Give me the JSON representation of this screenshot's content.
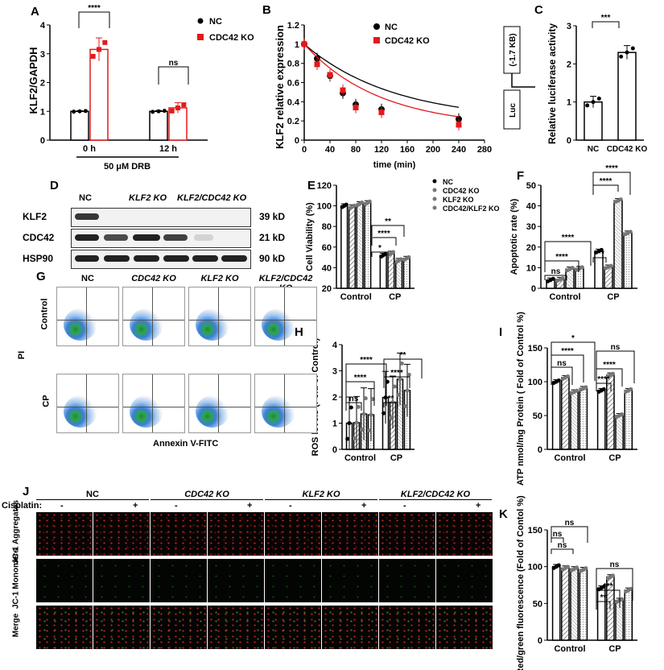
{
  "panels": {
    "A": "A",
    "B": "B",
    "C": "C",
    "D": "D",
    "E": "E",
    "F": "F",
    "G": "G",
    "H": "H",
    "I": "I",
    "J": "J",
    "K": "K"
  },
  "colors": {
    "nc": "#000000",
    "ko": "#e31a1c",
    "black": "#000000"
  },
  "panel_d": {
    "headers": [
      "NC",
      "KLF2 KO",
      "KLF2/CDC42 KO"
    ],
    "rows": [
      {
        "label": "KLF2",
        "size": "39 kD"
      },
      {
        "label": "CDC42",
        "size": "21 kD"
      },
      {
        "label": "HSP90",
        "size": "90 kD"
      }
    ]
  },
  "panel_g": {
    "columns": [
      "NC",
      "CDC42 KO",
      "KLF2 KO",
      "KLF2/CDC42 KO"
    ],
    "rows": [
      "Control",
      "CP"
    ],
    "xlabel": "Annexin V-FITC",
    "ylabel": "PI"
  },
  "panel_j": {
    "cisplatin_label": "Cisplatin:",
    "groups": [
      "NC",
      "CDC42 KO",
      "KLF2 KO",
      "KLF2/CDC42 KO"
    ],
    "signs": [
      "-",
      "+"
    ],
    "rows": [
      "JC-1 Aggregates",
      "JC-1 Monomers",
      "Merge"
    ]
  },
  "chart_data": [
    {
      "id": "A",
      "type": "bar",
      "categories": [
        "0 h",
        "12 h"
      ],
      "ylabel": "KLF2/GAPDH",
      "ylim": [
        0,
        4
      ],
      "yticks": [
        0,
        1,
        2,
        3,
        4
      ],
      "xnote": "50 μM DRB",
      "series": [
        {
          "name": "NC",
          "values": [
            1.0,
            1.0
          ],
          "err": [
            0.02,
            0.03
          ]
        },
        {
          "name": "CDC42 KO",
          "values": [
            3.15,
            1.12
          ],
          "err": [
            0.4,
            0.18
          ]
        }
      ],
      "annotations": [
        "****",
        "ns"
      ]
    },
    {
      "id": "B",
      "type": "line",
      "xlabel": "time (min)",
      "ylabel": "KLF2 relative expression",
      "xlim": [
        0,
        280
      ],
      "ylim": [
        0,
        1.2
      ],
      "xticks": [
        0,
        40,
        80,
        120,
        160,
        200,
        240,
        280
      ],
      "yticks": [
        0,
        0.2,
        0.4,
        0.6,
        0.8,
        1.0,
        1.2
      ],
      "x": [
        0,
        20,
        40,
        60,
        80,
        120,
        240
      ],
      "series": [
        {
          "name": "NC",
          "values": [
            1.0,
            0.85,
            0.67,
            0.49,
            0.37,
            0.32,
            0.22
          ]
        },
        {
          "name": "CDC42 KO",
          "values": [
            1.0,
            0.79,
            0.68,
            0.52,
            0.34,
            0.29,
            0.16
          ]
        }
      ]
    },
    {
      "id": "C",
      "type": "bar",
      "categories": [
        "NC",
        "CDC42 KO"
      ],
      "ylabel": "Relative luciferase activity",
      "ylim": [
        0,
        3
      ],
      "yticks": [
        0,
        1,
        2,
        3
      ],
      "values": [
        1.0,
        2.3
      ],
      "err": [
        0.15,
        0.18
      ],
      "annotations": [
        "***"
      ],
      "construct": [
        "(-1.7 KB)",
        "Luc"
      ]
    },
    {
      "id": "E",
      "type": "bar",
      "categories": [
        "Control",
        "CP"
      ],
      "ylabel": "Cell Viability (%)",
      "ylim": [
        20,
        120
      ],
      "yticks": [
        20,
        40,
        60,
        80,
        100,
        120
      ],
      "series": [
        {
          "name": "NC",
          "values": [
            100,
            52
          ]
        },
        {
          "name": "CDC42 KO",
          "values": [
            99,
            54
          ]
        },
        {
          "name": "KLF2 KO",
          "values": [
            102,
            47
          ]
        },
        {
          "name": "CDC42/KLF2 KO",
          "values": [
            103,
            49
          ]
        }
      ],
      "annotations": [
        "*",
        "****",
        "**"
      ]
    },
    {
      "id": "F",
      "type": "bar",
      "categories": [
        "Control",
        "CP"
      ],
      "ylabel": "Apoptotic rate (%)",
      "ylim": [
        0,
        50
      ],
      "yticks": [
        0,
        10,
        20,
        30,
        40,
        50
      ],
      "series": [
        {
          "name": "NC",
          "values": [
            4,
            18
          ]
        },
        {
          "name": "CDC42 KO",
          "values": [
            4.3,
            10.3
          ]
        },
        {
          "name": "KLF2 KO",
          "values": [
            9.3,
            42.5
          ]
        },
        {
          "name": "CDC42/KLF2 KO",
          "values": [
            9.6,
            26.8
          ]
        }
      ],
      "annotations": [
        "ns",
        "****",
        "****",
        "***",
        "****",
        "****"
      ]
    },
    {
      "id": "H",
      "type": "bar",
      "categories": [
        "Control",
        "CP"
      ],
      "ylabel": "ROS levels (Fold of Control)",
      "ylim": [
        0,
        4
      ],
      "yticks": [
        0,
        1,
        2,
        3,
        4
      ],
      "series": [
        {
          "name": "NC",
          "values": [
            1.0,
            1.98
          ]
        },
        {
          "name": "CDC42 KO",
          "values": [
            1.02,
            1.8
          ]
        },
        {
          "name": "KLF2 KO",
          "values": [
            1.35,
            2.68
          ]
        },
        {
          "name": "CDC42/KLF2 KO",
          "values": [
            1.32,
            2.25
          ]
        }
      ],
      "annotations": [
        "ns",
        "****",
        "****",
        "**",
        "****",
        "**"
      ]
    },
    {
      "id": "I",
      "type": "bar",
      "categories": [
        "Control",
        "CP"
      ],
      "ylabel": "ATP nmol/mg Protein ( Fold of Control %)",
      "ylim": [
        0,
        150
      ],
      "yticks": [
        0,
        50,
        100,
        150
      ],
      "series": [
        {
          "name": "NC",
          "values": [
            100,
            87
          ]
        },
        {
          "name": "CDC42 KO",
          "values": [
            106,
            110
          ]
        },
        {
          "name": "KLF2 KO",
          "values": [
            85,
            50
          ]
        },
        {
          "name": "CDC42/KLF2 KO",
          "values": [
            90,
            87
          ]
        }
      ],
      "annotations": [
        "ns",
        "****",
        "*",
        "****",
        "****",
        "ns"
      ]
    },
    {
      "id": "K",
      "type": "bar",
      "categories": [
        "Control",
        "CP"
      ],
      "ylabel": "Red/green fluorescence (Fold of Contol %)",
      "ylim": [
        0,
        150
      ],
      "yticks": [
        0,
        50,
        100,
        150
      ],
      "series": [
        {
          "name": "NC",
          "values": [
            100,
            71
          ]
        },
        {
          "name": "CDC42 KO",
          "values": [
            98,
            86
          ]
        },
        {
          "name": "KLF2 KO",
          "values": [
            97,
            54
          ]
        },
        {
          "name": "CDC42/KLF2 KO",
          "values": [
            96,
            68
          ]
        }
      ],
      "annotations": [
        "ns",
        "ns",
        "ns",
        "**",
        "***",
        "ns"
      ]
    }
  ]
}
